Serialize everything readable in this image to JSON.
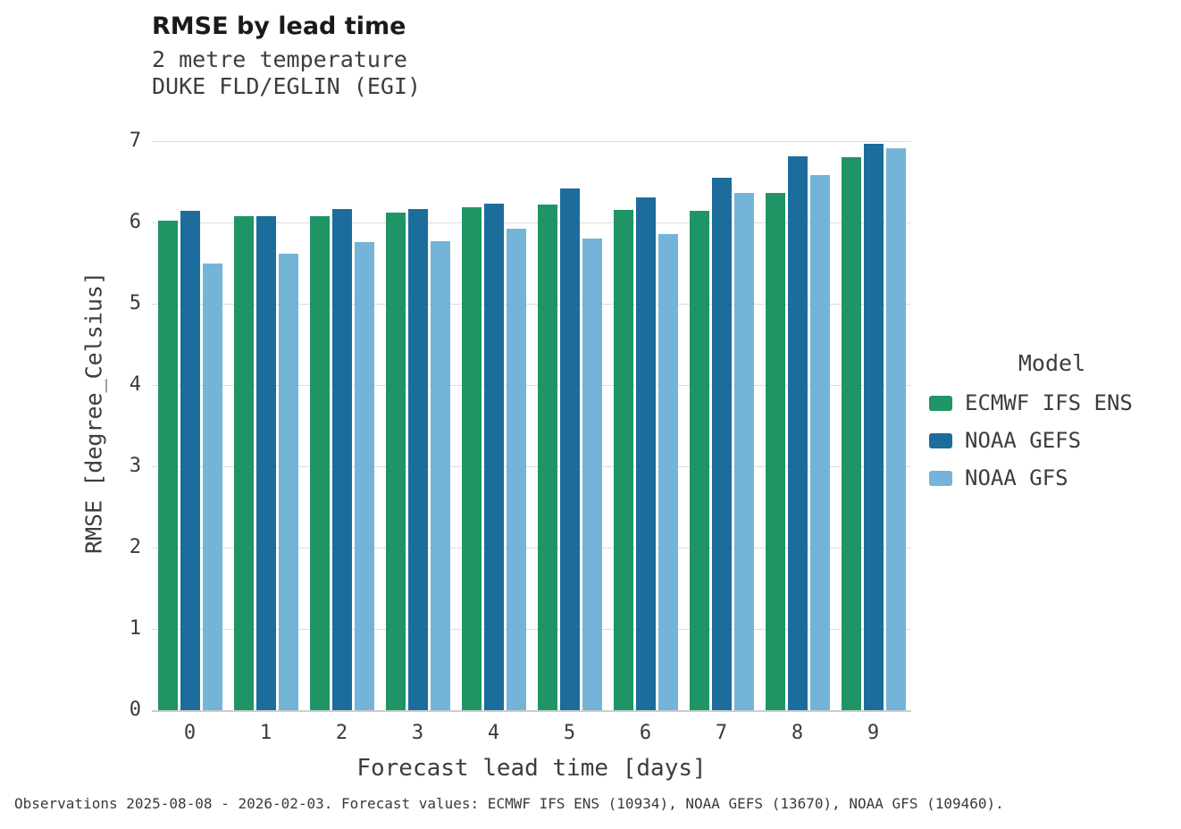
{
  "title": "RMSE by lead time",
  "subtitle1": "2 metre temperature",
  "subtitle2": "DUKE FLD/EGLIN (EGI)",
  "footer": "Observations 2025-08-08 - 2026-02-03. Forecast values: ECMWF IFS ENS (10934), NOAA GEFS (13670), NOAA GFS (109460).",
  "legend": {
    "title": "Model",
    "entries": [
      {
        "label": "ECMWF IFS ENS",
        "color": "#1f9566"
      },
      {
        "label": "NOAA GEFS",
        "color": "#1c6d9c"
      },
      {
        "label": "NOAA GFS",
        "color": "#74b4d8"
      }
    ]
  },
  "chart_data": {
    "type": "bar",
    "title": "RMSE by lead time",
    "subtitle": [
      "2 metre temperature",
      "DUKE FLD/EGLIN (EGI)"
    ],
    "xlabel": "Forecast lead time [days]",
    "ylabel": "RMSE [degree_Celsius]",
    "categories": [
      "0",
      "1",
      "2",
      "3",
      "4",
      "5",
      "6",
      "7",
      "8",
      "9"
    ],
    "ylim": [
      0,
      7
    ],
    "y_ticks": [
      0,
      1,
      2,
      3,
      4,
      5,
      6,
      7
    ],
    "grid": true,
    "legend_position": "right",
    "series": [
      {
        "name": "ECMWF IFS ENS",
        "color": "#1f9566",
        "values": [
          6.02,
          6.08,
          6.08,
          6.12,
          6.19,
          6.22,
          6.15,
          6.14,
          6.36,
          6.8
        ]
      },
      {
        "name": "NOAA GEFS",
        "color": "#1c6d9c",
        "values": [
          6.14,
          6.08,
          6.16,
          6.16,
          6.23,
          6.42,
          6.31,
          6.55,
          6.81,
          6.97
        ]
      },
      {
        "name": "NOAA GFS",
        "color": "#74b4d8",
        "values": [
          5.49,
          5.62,
          5.76,
          5.77,
          5.92,
          5.8,
          5.86,
          6.36,
          6.58,
          6.91
        ]
      }
    ]
  }
}
